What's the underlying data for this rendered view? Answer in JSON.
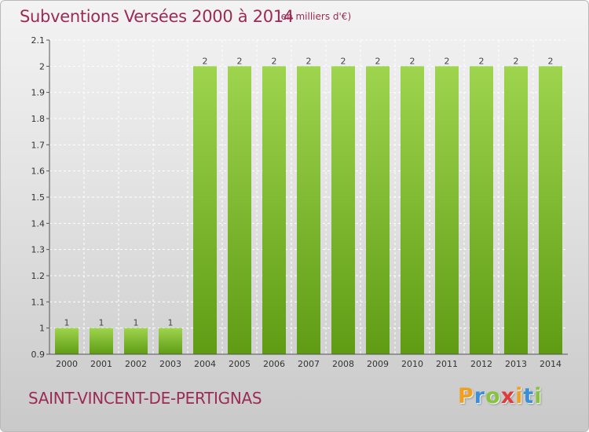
{
  "header": {
    "title": "Subventions Versées 2000 à 2014",
    "unit": "(en milliers d'€)"
  },
  "footer": {
    "commune": "SAINT-VINCENT-DE-PERTIGNAS",
    "logo_letters": [
      "P",
      "r",
      "o",
      "x",
      "i",
      "t",
      "i"
    ],
    "logo_colors": [
      "#f0a020",
      "#3a8fd8",
      "#86c440",
      "#e03b3b",
      "#f0a020",
      "#3a8fd8",
      "#86c440"
    ]
  },
  "chart_data": {
    "type": "bar",
    "title": "Subventions Versées 2000 à 2014",
    "categories": [
      "2000",
      "2001",
      "2002",
      "2003",
      "2004",
      "2005",
      "2006",
      "2007",
      "2008",
      "2009",
      "2010",
      "2011",
      "2012",
      "2013",
      "2014"
    ],
    "values": [
      1,
      1,
      1,
      1,
      2,
      2,
      2,
      2,
      2,
      2,
      2,
      2,
      2,
      2,
      2
    ],
    "data_labels": [
      "1",
      "1",
      "1",
      "1",
      "2",
      "2",
      "2",
      "2",
      "2",
      "2",
      "2",
      "2",
      "2",
      "2",
      "2"
    ],
    "ylim": [
      0.9,
      2.1
    ],
    "yticks": [
      0.9,
      1,
      1.1,
      1.2,
      1.3,
      1.4,
      1.5,
      1.6,
      1.7,
      1.8,
      1.9,
      2,
      2.1
    ],
    "ytick_labels": [
      "0.9",
      "1",
      "1.1",
      "1.2",
      "1.3",
      "1.4",
      "1.5",
      "1.6",
      "1.7",
      "1.8",
      "1.9",
      "2",
      "2.1"
    ],
    "grid": true,
    "legend": "none",
    "colors": {
      "bar_light": "#9ed44e",
      "bar_dark": "#5f9c14",
      "grid": "#ffffff",
      "axis": "#555555"
    }
  }
}
